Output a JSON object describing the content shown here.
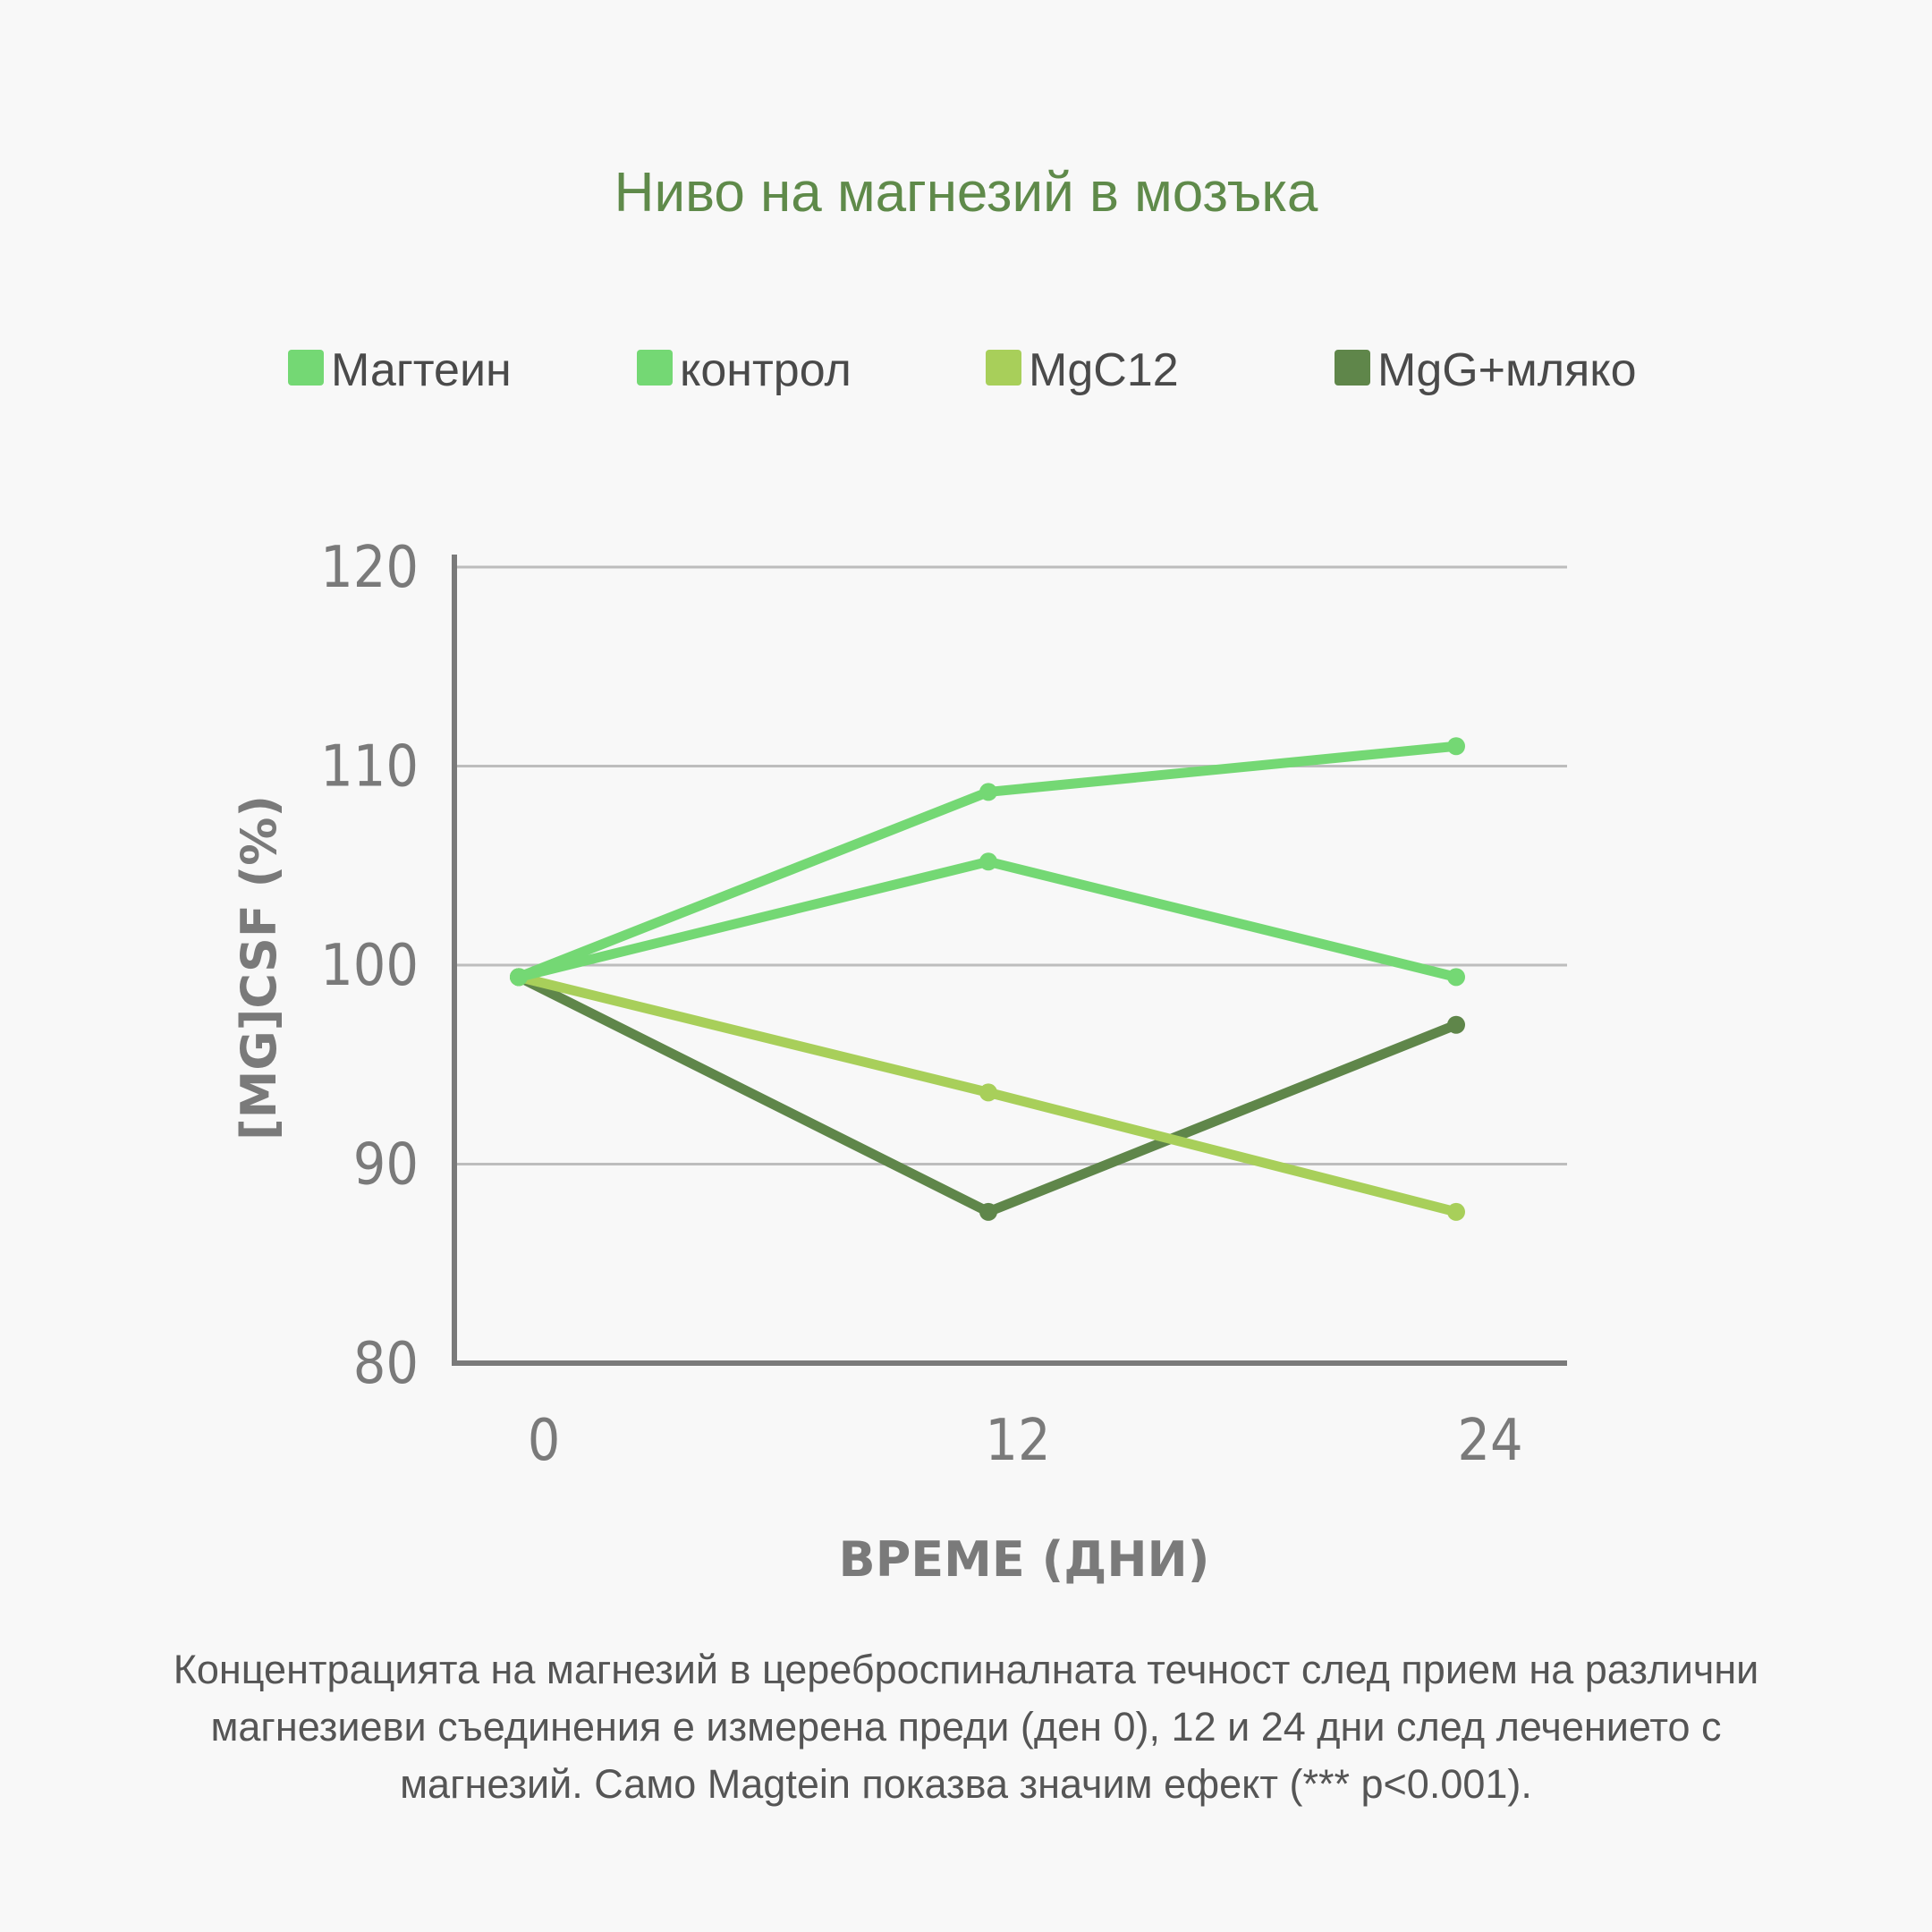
{
  "chart_data": {
    "type": "line",
    "title": "Ниво на магнезий в мозъка",
    "xlabel": "ВРЕМЕ (ДНИ)",
    "ylabel": "[MG]CSF (%)",
    "x": [
      0,
      12,
      24
    ],
    "x_tick_labels": [
      "0",
      "12",
      "24"
    ],
    "ylim": [
      80,
      120
    ],
    "y_ticks": [
      80,
      90,
      100,
      110,
      120
    ],
    "grid": true,
    "legend_position": "top",
    "series": [
      {
        "name": "Магтеин",
        "color": "#74d874",
        "values": [
          99.4,
          108.7,
          111.0
        ]
      },
      {
        "name": "контрол",
        "color": "#74d874",
        "values": [
          99.4,
          105.2,
          99.4
        ]
      },
      {
        "name": "MgC12",
        "color": "#a8cf5a",
        "values": [
          99.4,
          93.6,
          87.6
        ]
      },
      {
        "name": "MgG+мляко",
        "color": "#5f864a",
        "values": [
          99.4,
          87.6,
          97.0
        ]
      }
    ]
  },
  "caption": "Концентрацията на магнезий в цереброспиналната течност след прием на различни магнезиеви съединения е измерена преди (ден 0), 12 и 24 дни след лечението с магнезий. Само Magtein показва значим ефект (*** p<0.001)."
}
